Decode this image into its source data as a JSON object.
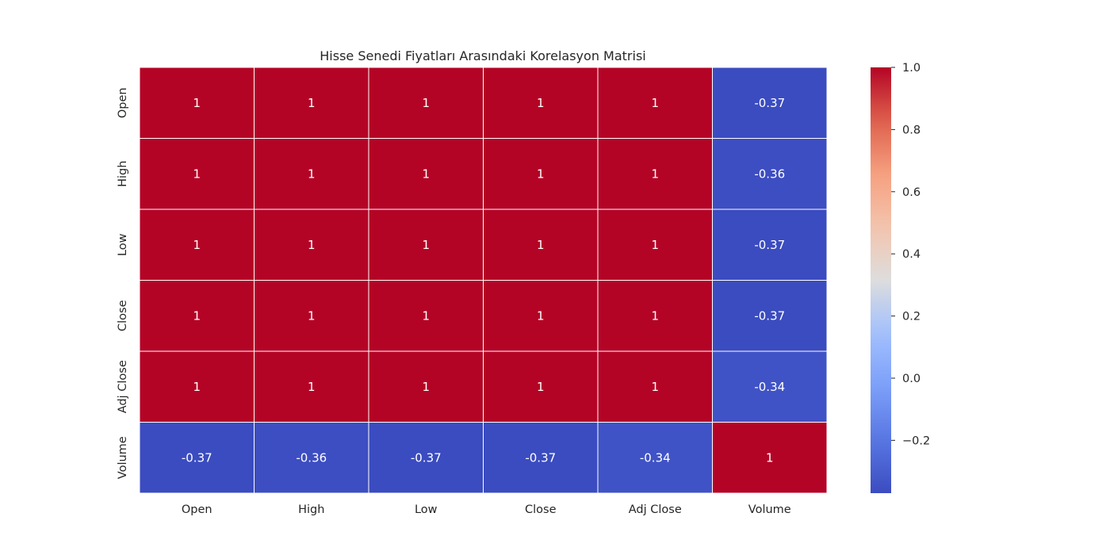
{
  "chart_data": {
    "type": "heatmap",
    "title": "Hisse Senedi Fiyatları Arasındaki Korelasyon Matrisi",
    "xlabel": "",
    "ylabel": "",
    "x_categories": [
      "Open",
      "High",
      "Low",
      "Close",
      "Adj Close",
      "Volume"
    ],
    "y_categories": [
      "Open",
      "High",
      "Low",
      "Close",
      "Adj Close",
      "Volume"
    ],
    "values": [
      [
        1,
        1,
        1,
        1,
        1,
        -0.37
      ],
      [
        1,
        1,
        1,
        1,
        1,
        -0.36
      ],
      [
        1,
        1,
        1,
        1,
        1,
        -0.37
      ],
      [
        1,
        1,
        1,
        1,
        1,
        -0.37
      ],
      [
        1,
        1,
        1,
        1,
        1,
        -0.34
      ],
      [
        -0.37,
        -0.36,
        -0.37,
        -0.37,
        -0.34,
        1
      ]
    ],
    "annotations": [
      [
        "1",
        "1",
        "1",
        "1",
        "1",
        "-0.37"
      ],
      [
        "1",
        "1",
        "1",
        "1",
        "1",
        "-0.36"
      ],
      [
        "1",
        "1",
        "1",
        "1",
        "1",
        "-0.37"
      ],
      [
        "1",
        "1",
        "1",
        "1",
        "1",
        "-0.37"
      ],
      [
        "1",
        "1",
        "1",
        "1",
        "1",
        "-0.34"
      ],
      [
        "-0.37",
        "-0.36",
        "-0.37",
        "-0.37",
        "-0.34",
        "1"
      ]
    ],
    "colormap": "coolwarm",
    "colorbar": {
      "range": [
        -0.37,
        1.0
      ],
      "ticks": [
        1.0,
        0.8,
        0.6,
        0.4,
        0.2,
        0.0,
        -0.2
      ],
      "tick_labels": [
        "1.0",
        "0.8",
        "0.6",
        "0.4",
        "0.2",
        "0.0",
        "−0.2"
      ]
    },
    "colors": {
      "high": "#b40426",
      "low": "#3b4cc0",
      "cell_border": "#ffffff",
      "text": "#262626"
    }
  }
}
